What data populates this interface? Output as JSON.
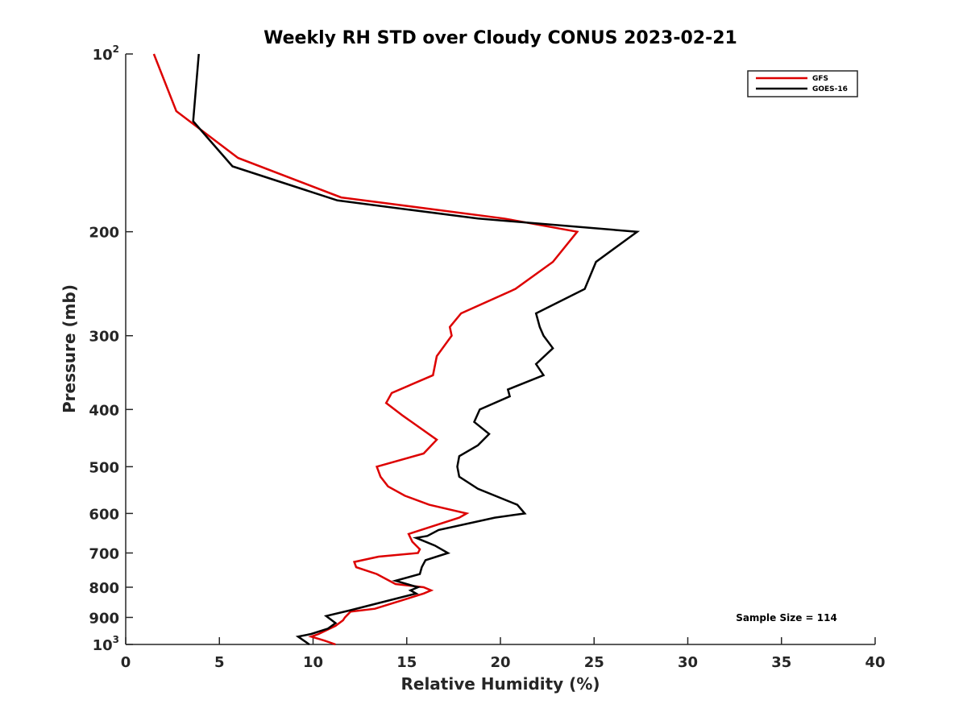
{
  "chart_data": {
    "type": "line",
    "title": "Weekly RH STD over Cloudy CONUS 2023-02-21",
    "xlabel": "Relative Humidity (%)",
    "ylabel": "Pressure (mb)",
    "xlim": [
      0,
      40
    ],
    "ylim": [
      100,
      1000
    ],
    "y_scale": "log",
    "y_reversed": true,
    "x_ticks": [
      0,
      5,
      10,
      15,
      20,
      25,
      30,
      35,
      40
    ],
    "x_tick_labels": [
      "0",
      "5",
      "10",
      "15",
      "20",
      "25",
      "30",
      "35",
      "40"
    ],
    "y_ticks": [
      100,
      200,
      300,
      400,
      500,
      600,
      700,
      800,
      900,
      1000
    ],
    "y_tick_labels": [
      {
        "base": "10",
        "exp": "2"
      },
      {
        "base": "200",
        "exp": ""
      },
      {
        "base": "300",
        "exp": ""
      },
      {
        "base": "400",
        "exp": ""
      },
      {
        "base": "500",
        "exp": ""
      },
      {
        "base": "600",
        "exp": ""
      },
      {
        "base": "700",
        "exp": ""
      },
      {
        "base": "800",
        "exp": ""
      },
      {
        "base": "900",
        "exp": ""
      },
      {
        "base": "10",
        "exp": "3"
      }
    ],
    "grid": false,
    "legend_position": "top-right",
    "annotation": "Sample Size = 114",
    "series": [
      {
        "name": "GFS",
        "color": "#dd0000",
        "points": [
          [
            1.5,
            100
          ],
          [
            2.7,
            125
          ],
          [
            6.0,
            150
          ],
          [
            11.5,
            175
          ],
          [
            20.2,
            190
          ],
          [
            24.1,
            200
          ],
          [
            22.8,
            225
          ],
          [
            20.8,
            250
          ],
          [
            17.9,
            275
          ],
          [
            17.3,
            290
          ],
          [
            17.4,
            300
          ],
          [
            16.6,
            325
          ],
          [
            16.4,
            350
          ],
          [
            14.2,
            375
          ],
          [
            13.9,
            390
          ],
          [
            14.8,
            410
          ],
          [
            16.6,
            450
          ],
          [
            15.9,
            475
          ],
          [
            13.4,
            500
          ],
          [
            13.6,
            520
          ],
          [
            14.0,
            540
          ],
          [
            14.9,
            560
          ],
          [
            16.2,
            580
          ],
          [
            18.2,
            600
          ],
          [
            17.8,
            610
          ],
          [
            15.1,
            650
          ],
          [
            15.3,
            670
          ],
          [
            15.7,
            690
          ],
          [
            15.6,
            700
          ],
          [
            13.5,
            710
          ],
          [
            12.2,
            725
          ],
          [
            12.3,
            740
          ],
          [
            13.4,
            760
          ],
          [
            14.4,
            790
          ],
          [
            15.9,
            800
          ],
          [
            16.3,
            810
          ],
          [
            15.9,
            820
          ],
          [
            13.3,
            870
          ],
          [
            12.0,
            880
          ],
          [
            11.7,
            900
          ],
          [
            11.6,
            910
          ],
          [
            11.2,
            930
          ],
          [
            10.3,
            960
          ],
          [
            9.9,
            970
          ],
          [
            10.6,
            985
          ],
          [
            11.2,
            1000
          ]
        ]
      },
      {
        "name": "GOES-16",
        "color": "#000000",
        "points": [
          [
            3.9,
            100
          ],
          [
            3.6,
            130
          ],
          [
            5.7,
            155
          ],
          [
            11.3,
            177
          ],
          [
            18.8,
            190
          ],
          [
            27.3,
            200
          ],
          [
            25.1,
            225
          ],
          [
            24.5,
            250
          ],
          [
            21.9,
            275
          ],
          [
            22.1,
            290
          ],
          [
            22.3,
            300
          ],
          [
            22.8,
            315
          ],
          [
            21.9,
            335
          ],
          [
            22.3,
            350
          ],
          [
            20.4,
            370
          ],
          [
            20.5,
            380
          ],
          [
            18.9,
            400
          ],
          [
            18.6,
            420
          ],
          [
            19.4,
            440
          ],
          [
            18.8,
            460
          ],
          [
            17.8,
            480
          ],
          [
            17.7,
            500
          ],
          [
            17.8,
            520
          ],
          [
            18.8,
            545
          ],
          [
            20.9,
            580
          ],
          [
            21.1,
            590
          ],
          [
            21.3,
            600
          ],
          [
            19.7,
            610
          ],
          [
            16.7,
            640
          ],
          [
            16.1,
            655
          ],
          [
            15.5,
            660
          ],
          [
            16.5,
            680
          ],
          [
            17.2,
            700
          ],
          [
            16.0,
            720
          ],
          [
            15.8,
            740
          ],
          [
            15.7,
            760
          ],
          [
            14.4,
            780
          ],
          [
            15.6,
            800
          ],
          [
            15.2,
            810
          ],
          [
            15.5,
            820
          ],
          [
            14.2,
            840
          ],
          [
            12.0,
            875
          ],
          [
            10.7,
            895
          ],
          [
            11.2,
            920
          ],
          [
            10.8,
            940
          ],
          [
            9.9,
            960
          ],
          [
            9.2,
            970
          ],
          [
            9.8,
            1000
          ]
        ]
      }
    ]
  }
}
